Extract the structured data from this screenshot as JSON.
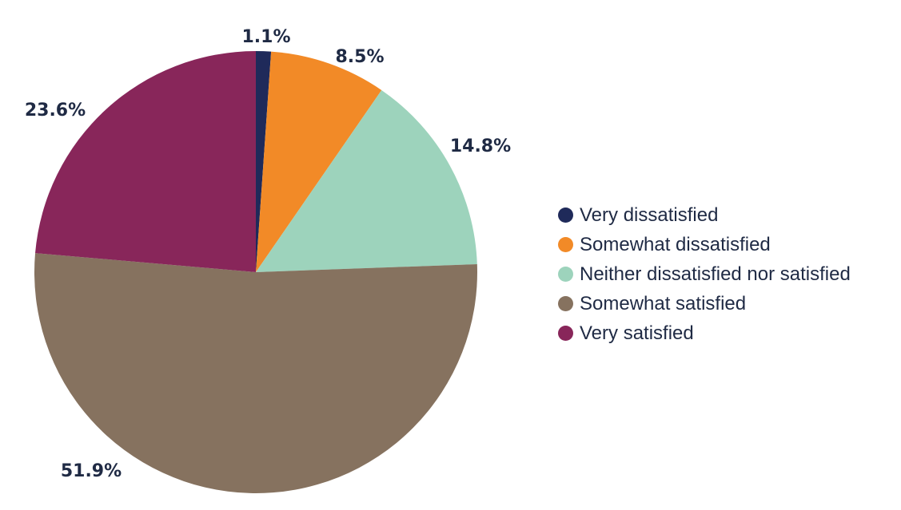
{
  "chart_data": {
    "type": "pie",
    "start_angle_deg": 0,
    "direction": "clockwise",
    "legend_position": "right",
    "slices": [
      {
        "name": "Very dissatisfied",
        "value": 1.1,
        "label": "1.1%",
        "color": "#1f2a5a"
      },
      {
        "name": "Somewhat dissatisfied",
        "value": 8.5,
        "label": "8.5%",
        "color": "#f28a27"
      },
      {
        "name": "Neither dissatisfied nor satisfied",
        "value": 14.8,
        "label": "14.8%",
        "color": "#9dd3bc"
      },
      {
        "name": "Somewhat satisfied",
        "value": 51.9,
        "label": "51.9%",
        "color": "#86725f"
      },
      {
        "name": "Very satisfied",
        "value": 23.6,
        "label": "23.6%",
        "color": "#88265a"
      }
    ]
  }
}
